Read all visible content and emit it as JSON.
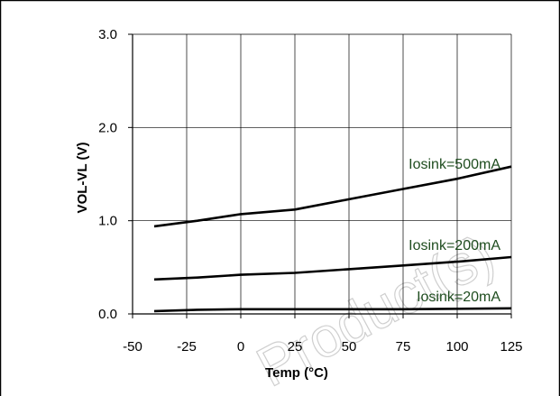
{
  "chart_data": {
    "type": "line",
    "title": "",
    "xlabel": "Temp (°C)",
    "ylabel": "VOL-VL (V)",
    "xlim": [
      -50,
      125
    ],
    "ylim": [
      0,
      3
    ],
    "x_ticks": [
      "-50",
      "-25",
      "0",
      "25",
      "50",
      "75",
      "100",
      "125"
    ],
    "y_ticks": [
      "0.0",
      "1.0",
      "2.0",
      "3.0"
    ],
    "grid": true,
    "legend": "none",
    "series": [
      {
        "name": "Iosink=500mA",
        "x": [
          -40,
          -20,
          0,
          25,
          50,
          75,
          100,
          125
        ],
        "y": [
          0.94,
          1.0,
          1.07,
          1.12,
          1.23,
          1.34,
          1.45,
          1.58
        ]
      },
      {
        "name": "Iosink=200mA",
        "x": [
          -40,
          -20,
          0,
          25,
          50,
          75,
          100,
          125
        ],
        "y": [
          0.37,
          0.39,
          0.42,
          0.44,
          0.48,
          0.52,
          0.56,
          0.61
        ]
      },
      {
        "name": "Iosink=20mA",
        "x": [
          -40,
          -20,
          0,
          25,
          50,
          75,
          100,
          125
        ],
        "y": [
          0.03,
          0.045,
          0.05,
          0.05,
          0.05,
          0.05,
          0.055,
          0.06
        ]
      }
    ]
  },
  "watermark": {
    "text": "Product(s)"
  },
  "colors": {
    "line": "#000000",
    "label": "#1f4d1f",
    "grid": "#000000"
  }
}
